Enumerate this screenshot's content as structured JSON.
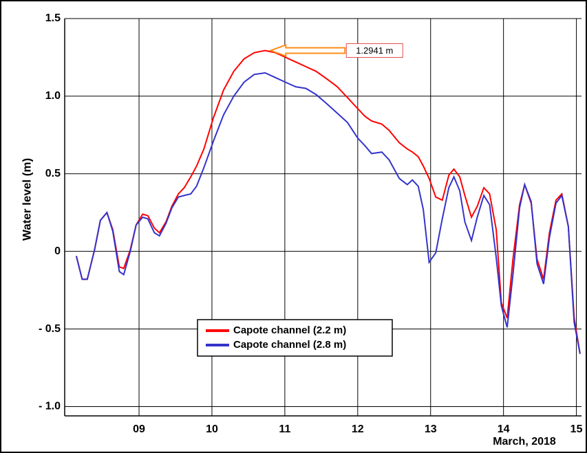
{
  "chart_data": {
    "type": "line",
    "y_label": "Water level (m)",
    "x_label": "March, 2018",
    "annotation": "1.2941 m",
    "xlim": [
      7.98,
      15.07
    ],
    "ylim": [
      -1.06,
      1.5
    ],
    "xticks": [
      {
        "value": 9,
        "label": "09"
      },
      10,
      11,
      12,
      13,
      14,
      15
    ],
    "yticks": [
      {
        "value": -1,
        "label": "- 1.0"
      },
      {
        "value": -0.5,
        "label": "- 0.5"
      },
      0,
      0.5,
      {
        "value": 1,
        "label": "1.0"
      },
      1.5
    ],
    "grid": true,
    "legend": "lower center",
    "x": [
      8.14,
      8.22,
      8.29,
      8.39,
      8.47,
      8.56,
      8.64,
      8.73,
      8.79,
      8.88,
      8.96,
      9.05,
      9.12,
      9.21,
      9.28,
      9.37,
      9.45,
      9.54,
      9.62,
      9.71,
      9.79,
      9.89,
      10.02,
      10.16,
      10.3,
      10.44,
      10.58,
      10.73,
      10.87,
      11.01,
      11.15,
      11.29,
      11.43,
      11.58,
      11.72,
      11.86,
      12.0,
      12.1,
      12.19,
      12.33,
      12.43,
      12.57,
      12.68,
      12.75,
      12.83,
      12.9,
      12.98,
      13.07,
      13.16,
      13.25,
      13.32,
      13.4,
      13.47,
      13.56,
      13.64,
      13.73,
      13.81,
      13.9,
      13.97,
      14.05,
      14.13,
      14.22,
      14.29,
      14.38,
      14.46,
      14.55,
      14.63,
      14.72,
      14.8,
      14.89,
      14.97,
      15.05
    ],
    "series": [
      {
        "name": "Capote channel (2.2 m)",
        "color": "#ff0000",
        "values": [
          -0.03,
          -0.18,
          -0.18,
          0.01,
          0.2,
          0.25,
          0.14,
          -0.1,
          -0.11,
          0.01,
          0.17,
          0.24,
          0.23,
          0.15,
          0.12,
          0.19,
          0.29,
          0.37,
          0.41,
          0.48,
          0.55,
          0.66,
          0.86,
          1.04,
          1.16,
          1.24,
          1.28,
          1.2941,
          1.28,
          1.25,
          1.22,
          1.19,
          1.16,
          1.11,
          1.06,
          0.99,
          0.92,
          0.87,
          0.84,
          0.82,
          0.78,
          0.7,
          0.66,
          0.64,
          0.61,
          0.55,
          0.47,
          0.35,
          0.33,
          0.49,
          0.53,
          0.48,
          0.36,
          0.22,
          0.29,
          0.41,
          0.37,
          0.14,
          -0.33,
          -0.43,
          -0.05,
          0.3,
          0.43,
          0.31,
          -0.05,
          -0.18,
          0.12,
          0.33,
          0.37,
          0.16,
          -0.43,
          -0.66
        ]
      },
      {
        "name": "Capote channel (2.8 m)",
        "color": "#3333cc",
        "values": [
          -0.03,
          -0.18,
          -0.18,
          0.01,
          0.2,
          0.25,
          0.13,
          -0.13,
          -0.15,
          0.0,
          0.17,
          0.22,
          0.21,
          0.12,
          0.1,
          0.18,
          0.28,
          0.35,
          0.36,
          0.37,
          0.42,
          0.54,
          0.71,
          0.88,
          1.0,
          1.09,
          1.14,
          1.15,
          1.12,
          1.09,
          1.06,
          1.05,
          1.01,
          0.95,
          0.89,
          0.83,
          0.73,
          0.68,
          0.63,
          0.64,
          0.59,
          0.47,
          0.43,
          0.46,
          0.42,
          0.27,
          -0.07,
          -0.01,
          0.21,
          0.41,
          0.48,
          0.39,
          0.19,
          0.07,
          0.22,
          0.36,
          0.3,
          -0.04,
          -0.35,
          -0.49,
          -0.15,
          0.28,
          0.43,
          0.32,
          -0.08,
          -0.21,
          0.09,
          0.31,
          0.36,
          0.16,
          -0.46,
          -0.66
        ]
      }
    ]
  }
}
